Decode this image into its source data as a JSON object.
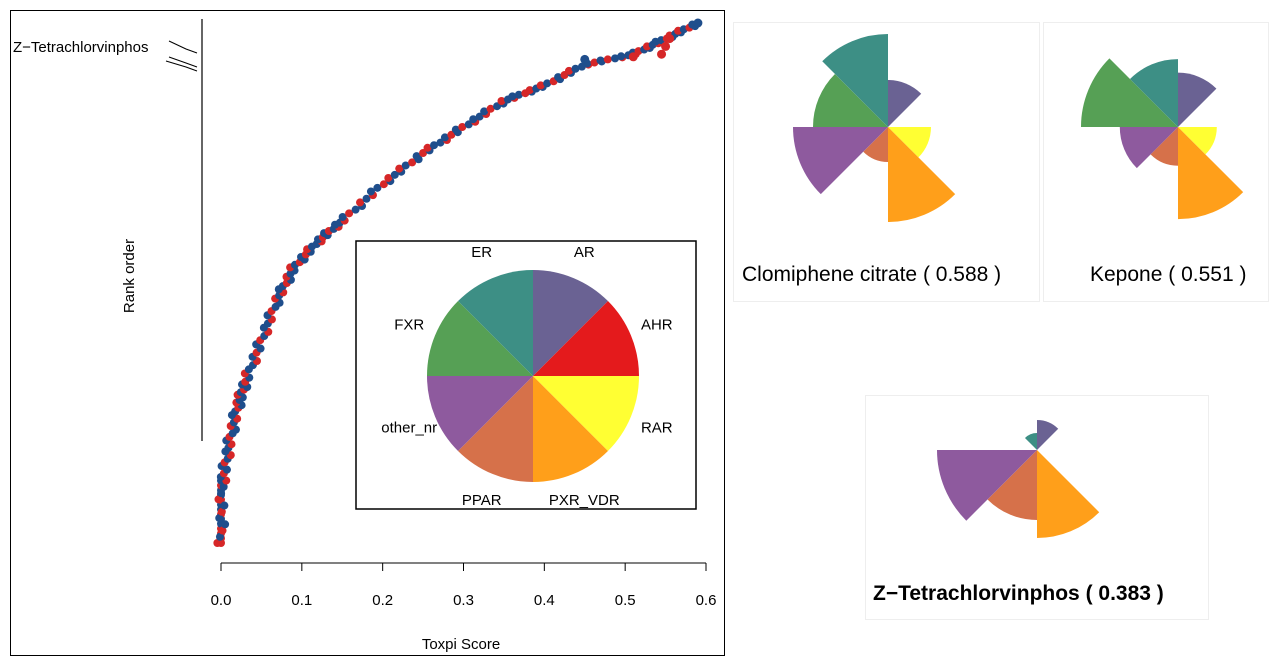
{
  "colors": {
    "AR": "#6a6293",
    "AHR": "#e41a1c",
    "RAR": "#ffff33",
    "PXR_VDR": "#ff9f1a",
    "PPAR": "#d6714a",
    "other_nr": "#8e5a9e",
    "FXR": "#56a055",
    "ER": "#3d8f85",
    "point_red": "#d62728",
    "point_blue": "#1f4e8c"
  },
  "chart_data": [
    {
      "type": "scatter",
      "title": "",
      "xlabel": "Toxpi Score",
      "ylabel": "Rank order",
      "xlim": [
        0.0,
        0.6
      ],
      "xticks": [
        "0.0",
        "0.1",
        "0.2",
        "0.3",
        "0.4",
        "0.5",
        "0.6"
      ],
      "annotation": "Z−Tetrachlorvinphos",
      "grid": false,
      "curve_points": [
        [
          0.0,
          0.0
        ],
        [
          0.002,
          0.12
        ],
        [
          0.01,
          0.19
        ],
        [
          0.02,
          0.26
        ],
        [
          0.03,
          0.31
        ],
        [
          0.05,
          0.39
        ],
        [
          0.07,
          0.47
        ],
        [
          0.09,
          0.53
        ],
        [
          0.12,
          0.58
        ],
        [
          0.15,
          0.62
        ],
        [
          0.2,
          0.69
        ],
        [
          0.25,
          0.75
        ],
        [
          0.3,
          0.8
        ],
        [
          0.35,
          0.85
        ],
        [
          0.4,
          0.88
        ],
        [
          0.45,
          0.92
        ],
        [
          0.51,
          0.94
        ],
        [
          0.55,
          0.97
        ],
        [
          0.59,
          1.0
        ]
      ]
    },
    {
      "type": "pie",
      "legend": true,
      "labels": [
        "AR",
        "AHR",
        "RAR",
        "PXR_VDR",
        "PPAR",
        "other_nr",
        "FXR",
        "ER"
      ],
      "values": [
        1,
        1,
        1,
        1,
        1,
        1,
        1,
        1
      ]
    },
    {
      "type": "pie",
      "name": "Clomiphene citrate",
      "score": "( 0.588 )",
      "labels": [
        "AR",
        "AHR",
        "RAR",
        "PXR_VDR",
        "PPAR",
        "other_nr",
        "FXR",
        "ER"
      ],
      "values": [
        0.47,
        0.0,
        0.43,
        0.95,
        0.35,
        0.95,
        0.75,
        0.93
      ]
    },
    {
      "type": "pie",
      "name": "Kepone",
      "score": "( 0.551 )",
      "labels": [
        "AR",
        "AHR",
        "RAR",
        "PXR_VDR",
        "PPAR",
        "other_nr",
        "FXR",
        "ER"
      ],
      "values": [
        0.56,
        0.0,
        0.4,
        0.95,
        0.4,
        0.6,
        1.0,
        0.7
      ]
    },
    {
      "type": "pie",
      "name": "Z−Tetrachlorvinphos",
      "score": "( 0.383 )",
      "labels": [
        "AR",
        "AHR",
        "RAR",
        "PXR_VDR",
        "PPAR",
        "other_nr",
        "FXR",
        "ER"
      ],
      "values": [
        0.3,
        0.0,
        0.0,
        0.88,
        0.7,
        1.0,
        0.0,
        0.17
      ]
    }
  ]
}
